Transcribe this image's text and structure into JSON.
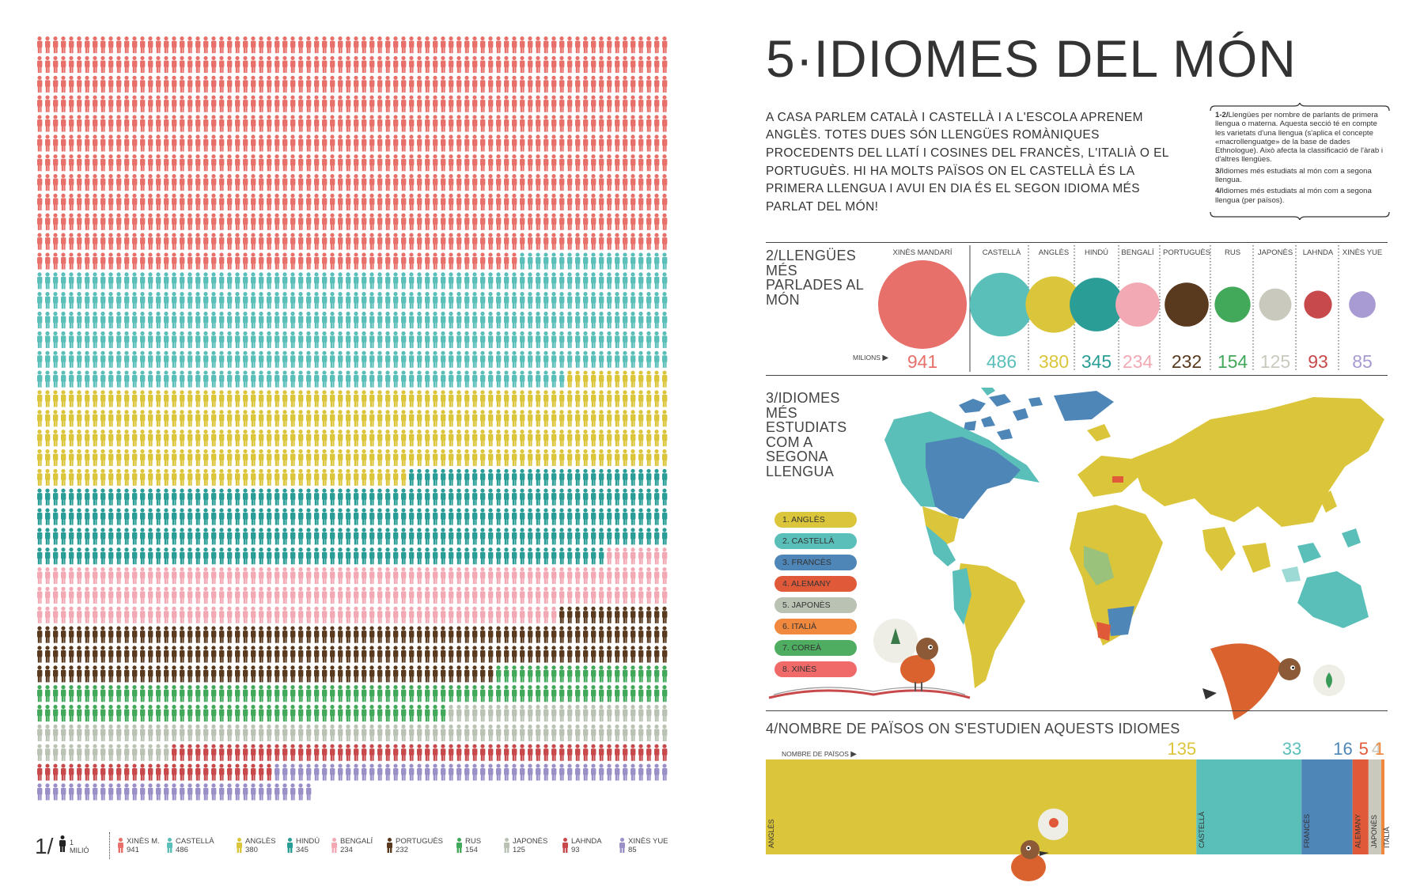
{
  "title": "5·IDIOMES DEL MÓN",
  "intro": "A CASA PARLEM CATALÀ I CASTELLÀ I A L'ESCOLA APRENEM ANGLÈS. TOTES DUES SÓN LLENGÜES ROMÀNIQUES PROCEDENTS DEL LLATÍ I COSINES DEL FRANCÈS, L'ITALIÀ O EL PORTUGUÈS. HI HA MOLTS PAÏSOS ON EL CASTELLÀ ÉS LA PRIMERA LLENGUA I AVUI EN DIA ÉS EL SEGON IDIOMA MÉS PARLAT DEL MÓN!",
  "notes": [
    {
      "key": "1-2/",
      "text": "Llengües per nombre de parlants de primera llengua o materna. Aquesta secció té en compte les varietats d'una llengua (s'aplica el concepte «macrollenguatge» de la base de dades Ethnologue). Això afecta la classificació de l'àrab i d'altres llengües."
    },
    {
      "key": "3/",
      "text": "Idiomes més estudiats al món com a segona llengua."
    },
    {
      "key": "4/",
      "text": "Idiomes més estudiats al món com a segona llengua (per països)."
    }
  ],
  "legend": {
    "number": "1/",
    "unit": "1 MILIÓ"
  },
  "section2": {
    "title": "2/LLENGÜES MÉS PARLADES AL MÓN",
    "unit_label": "MILIONS"
  },
  "section3": {
    "title": "3/IDIOMES MÉS ESTUDIATS COM A SEGONA LLENGUA"
  },
  "section4": {
    "title": "4/NOMBRE DE PAÏSOS ON S'ESTUDIEN AQUESTS IDIOMES",
    "unit_label": "NOMBRE DE PAÏSOS"
  },
  "chart_data": [
    {
      "type": "pictograph",
      "unit": "1 milió de parlants",
      "series": [
        {
          "name": "XINÈS M.",
          "value": 941,
          "color": "#e8706a"
        },
        {
          "name": "CASTELLÀ",
          "value": 486,
          "color": "#5bbfb9"
        },
        {
          "name": "ANGLÈS",
          "value": 380,
          "color": "#dbc53a"
        },
        {
          "name": "HINDÚ",
          "value": 345,
          "color": "#2a9e96"
        },
        {
          "name": "BENGALÍ",
          "value": 234,
          "color": "#f2a9b4"
        },
        {
          "name": "PORTUGUÈS",
          "value": 232,
          "color": "#5a3a1e"
        },
        {
          "name": "RUS",
          "value": 154,
          "color": "#42a85a"
        },
        {
          "name": "JAPONÈS",
          "value": 125,
          "color": "#b9c2b3"
        },
        {
          "name": "LAHNDA",
          "value": 93,
          "color": "#c8494b"
        },
        {
          "name": "XINÈS YUE",
          "value": 85,
          "color": "#9a8fc7"
        }
      ]
    },
    {
      "type": "bubble",
      "title": "2/LLENGÜES MÉS PARLADES AL MÓN",
      "unit": "MILIONS",
      "categories": [
        "XINÈS MANDARÍ",
        "CASTELLÀ",
        "ANGLÈS",
        "HINDÚ",
        "BENGALÍ",
        "PORTUGUÈS",
        "RUS",
        "JAPONÈS",
        "LAHNDA",
        "XINÈS YUE"
      ],
      "values": [
        941,
        486,
        380,
        345,
        234,
        232,
        154,
        125,
        93,
        85
      ],
      "colors": [
        "#e8706a",
        "#5bbfb9",
        "#dbc53a",
        "#2a9e96",
        "#f2a9b4",
        "#5a3a1e",
        "#42a85a",
        "#c9c9bd",
        "#c8494b",
        "#a89ad2"
      ]
    },
    {
      "type": "ranking",
      "title": "3/IDIOMES MÉS ESTUDIATS COM A SEGONA LLENGUA",
      "items": [
        {
          "label": "1. ANGLÈS",
          "color": "#dbc53a"
        },
        {
          "label": "2. CASTELLÀ",
          "color": "#5bbfb9"
        },
        {
          "label": "3. FRANCÈS",
          "color": "#4f86b8"
        },
        {
          "label": "4. ALEMANY",
          "color": "#e05a3a"
        },
        {
          "label": "5. JAPONÈS",
          "color": "#b9c2b3"
        },
        {
          "label": "6. ITALIÀ",
          "color": "#f0883e"
        },
        {
          "label": "7. COREÀ",
          "color": "#4fad62"
        },
        {
          "label": "8. XINÈS",
          "color": "#f06a6a"
        }
      ]
    },
    {
      "type": "stacked-bar",
      "title": "4/NOMBRE DE PAÏSOS ON S'ESTUDIEN AQUESTS IDIOMES",
      "unit": "NOMBRE DE PAÏSOS",
      "categories": [
        "ANGLÈS",
        "CASTELLÀ",
        "FRANCÈS",
        "ALEMANY",
        "JAPONÈS",
        "ITALIÀ"
      ],
      "values": [
        135,
        33,
        16,
        5,
        4,
        1
      ],
      "colors": [
        "#dbc53a",
        "#5bbfb9",
        "#4f86b8",
        "#e05a3a",
        "#c9c9bd",
        "#f0883e"
      ]
    }
  ]
}
